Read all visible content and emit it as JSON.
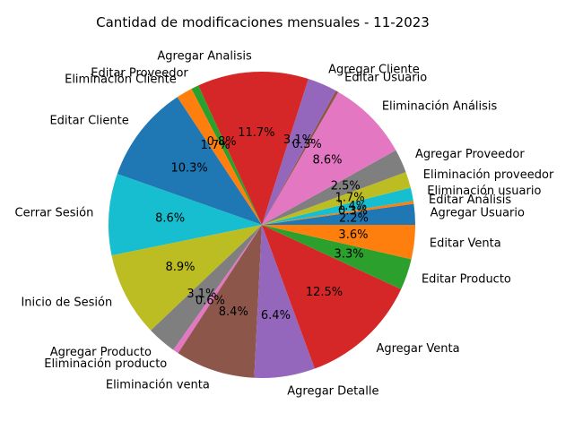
{
  "chart_data": {
    "type": "pie",
    "title": "Cantidad de modificaciones mensuales - 11-2023",
    "start_angle_deg": 0,
    "direction": "counterclockwise",
    "slices": [
      {
        "label": "Agregar Usuario",
        "value": 2.2,
        "pct_label": "2.2%",
        "color": "#1f77b4"
      },
      {
        "label": "Editar Análisis",
        "value": 0.3,
        "pct_label": "0.3%",
        "color": "#ff7f0e"
      },
      {
        "label": "Eliminación usuario",
        "value": 1.4,
        "pct_label": "1.4%",
        "color": "#17becf"
      },
      {
        "label": "Eliminación proveedor",
        "value": 1.7,
        "pct_label": "1.7%",
        "color": "#bcbd22"
      },
      {
        "label": "Agregar Proveedor",
        "value": 2.5,
        "pct_label": "2.5%",
        "color": "#7f7f7f"
      },
      {
        "label": "Eliminación Análisis",
        "value": 8.6,
        "pct_label": "8.6%",
        "color": "#e377c2"
      },
      {
        "label": "Editar Usuario",
        "value": 0.3,
        "pct_label": "0.3%",
        "color": "#8c564b"
      },
      {
        "label": "Agregar Cliente",
        "value": 3.1,
        "pct_label": "3.1%",
        "color": "#9467bd"
      },
      {
        "label": "Agregar Analisis",
        "value": 11.7,
        "pct_label": "11.7%",
        "color": "#d62728"
      },
      {
        "label": "Editar Proveedor",
        "value": 0.8,
        "pct_label": "0.8%",
        "color": "#2ca02c"
      },
      {
        "label": "Eliminación Cliente",
        "value": 1.7,
        "pct_label": "1.7%",
        "color": "#ff7f0e"
      },
      {
        "label": "Editar Cliente",
        "value": 10.3,
        "pct_label": "10.3%",
        "color": "#1f77b4"
      },
      {
        "label": "Cerrar Sesión",
        "value": 8.6,
        "pct_label": "8.6%",
        "color": "#17becf"
      },
      {
        "label": "Inicio de Sesión",
        "value": 8.9,
        "pct_label": "8.9%",
        "color": "#bcbd22"
      },
      {
        "label": "Agregar Producto",
        "value": 3.1,
        "pct_label": "3.1%",
        "color": "#7f7f7f"
      },
      {
        "label": "Eliminación producto",
        "value": 0.6,
        "pct_label": "0.6%",
        "color": "#e377c2"
      },
      {
        "label": "Eliminación venta",
        "value": 8.4,
        "pct_label": "8.4%",
        "color": "#8c564b"
      },
      {
        "label": "Agregar Detalle",
        "value": 6.4,
        "pct_label": "6.4%",
        "color": "#9467bd"
      },
      {
        "label": "Agregar Venta",
        "value": 12.5,
        "pct_label": "12.5%",
        "color": "#d62728"
      },
      {
        "label": "Editar Producto",
        "value": 3.3,
        "pct_label": "3.3%",
        "color": "#2ca02c"
      },
      {
        "label": "Editar Venta",
        "value": 3.6,
        "pct_label": "3.6%",
        "color": "#ff7f0e"
      }
    ]
  }
}
